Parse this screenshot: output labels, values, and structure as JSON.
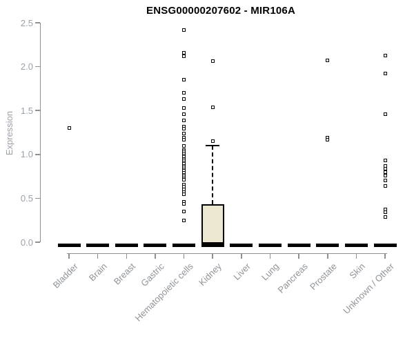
{
  "chart_data": {
    "type": "boxplot",
    "title": "ENSG00000207602 - MIR106A",
    "ylabel": "Expression",
    "xlabel": "",
    "ylim": [
      0,
      2.5
    ],
    "yticks": [
      0,
      0.5,
      1,
      1.5,
      2,
      2.5
    ],
    "ytick_labels": [
      "0.0",
      "0.5",
      "1.0",
      "1.5",
      "2.0",
      "2.5"
    ],
    "grid": false,
    "legend": null,
    "categories": [
      "Bladder",
      "Brain",
      "Breast",
      "Gastric",
      "Hematopoietic cells",
      "Kidney",
      "Liver",
      "Lung",
      "Pancreas",
      "Prostate",
      "Skin",
      "Unknown / Other"
    ],
    "boxes": [
      {
        "category": "Bladder",
        "q1": 0,
        "median": 0,
        "q3": 0,
        "whisker_low": 0,
        "whisker_high": 0,
        "outliers": [
          1.3
        ]
      },
      {
        "category": "Brain",
        "q1": 0,
        "median": 0,
        "q3": 0,
        "whisker_low": 0,
        "whisker_high": 0,
        "outliers": []
      },
      {
        "category": "Breast",
        "q1": 0,
        "median": 0,
        "q3": 0,
        "whisker_low": 0,
        "whisker_high": 0,
        "outliers": []
      },
      {
        "category": "Gastric",
        "q1": 0,
        "median": 0,
        "q3": 0,
        "whisker_low": 0,
        "whisker_high": 0,
        "outliers": []
      },
      {
        "category": "Hematopoietic cells",
        "q1": 0,
        "median": 0,
        "q3": 0,
        "whisker_low": 0,
        "whisker_high": 0,
        "outliers": [
          2.42,
          2.16,
          2.12,
          1.85,
          1.7,
          1.63,
          1.53,
          1.46,
          1.39,
          1.32,
          1.29,
          1.24,
          1.19,
          1.17,
          1.1,
          1.05,
          1.03,
          1.01,
          0.99,
          0.97,
          0.95,
          0.93,
          0.91,
          0.89,
          0.87,
          0.85,
          0.83,
          0.81,
          0.79,
          0.77,
          0.75,
          0.73,
          0.71,
          0.66,
          0.63,
          0.6,
          0.57,
          0.55,
          0.46,
          0.44,
          0.35,
          0.25
        ]
      },
      {
        "category": "Kidney",
        "q1": 0,
        "median": 0,
        "q3": 0.43,
        "whisker_low": 0,
        "whisker_high": 1.1,
        "outliers": [
          2.06,
          1.54,
          1.15
        ]
      },
      {
        "category": "Liver",
        "q1": 0,
        "median": 0,
        "q3": 0,
        "whisker_low": 0,
        "whisker_high": 0,
        "outliers": []
      },
      {
        "category": "Lung",
        "q1": 0,
        "median": 0,
        "q3": 0,
        "whisker_low": 0,
        "whisker_high": 0,
        "outliers": []
      },
      {
        "category": "Pancreas",
        "q1": 0,
        "median": 0,
        "q3": 0,
        "whisker_low": 0,
        "whisker_high": 0,
        "outliers": []
      },
      {
        "category": "Prostate",
        "q1": 0,
        "median": 0,
        "q3": 0,
        "whisker_low": 0,
        "whisker_high": 0,
        "outliers": [
          2.07,
          1.19,
          1.17
        ]
      },
      {
        "category": "Skin",
        "q1": 0,
        "median": 0,
        "q3": 0,
        "whisker_low": 0,
        "whisker_high": 0,
        "outliers": []
      },
      {
        "category": "Unknown / Other",
        "q1": 0,
        "median": 0,
        "q3": 0,
        "whisker_low": 0,
        "whisker_high": 0,
        "outliers": [
          2.13,
          1.92,
          1.46,
          0.93,
          0.87,
          0.84,
          0.8,
          0.76,
          0.7,
          0.64,
          0.37,
          0.34,
          0.29
        ]
      }
    ],
    "colors": {
      "box_fill": "#ece7d0",
      "box_border": "#000000",
      "median": "#000000",
      "outlier_border": "#000000",
      "axis": "#8f8f8f",
      "ytick_text": "#9aa1a9",
      "category_text": "#8f9499",
      "title_text": "#000000",
      "background": "#ffffff"
    }
  }
}
